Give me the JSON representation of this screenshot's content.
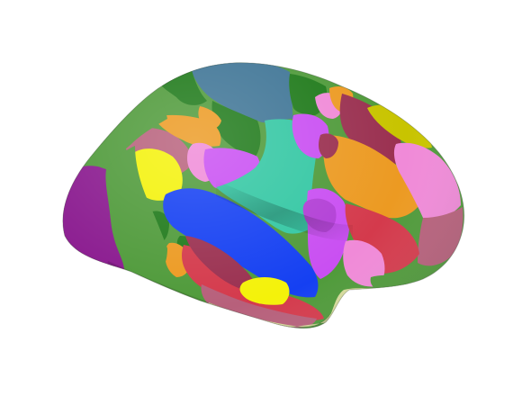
{
  "scene": {
    "background": "#ffffff",
    "subject": "brain-cortical-surface-parcellation",
    "view": "lateral",
    "shading": "smooth-3d"
  },
  "palette": {
    "purple": "#8a1a8f",
    "forest_green": "#4f9a3a",
    "dark_green": "#1f7a1a",
    "steel_blue": "#3f7596",
    "teal": "#33c7a3",
    "royal_blue": "#1540f2",
    "navy": "#111a8c",
    "yellow": "#f4f20a",
    "olive_yellow": "#c8c400",
    "violet": "#c94ff2",
    "pink": "#f08ad8",
    "orange": "#ec9a22",
    "maroon": "#9a3050",
    "crimson": "#d43a4c",
    "mauve": "#b7607b",
    "pale_yellow": "#d6db9c"
  }
}
